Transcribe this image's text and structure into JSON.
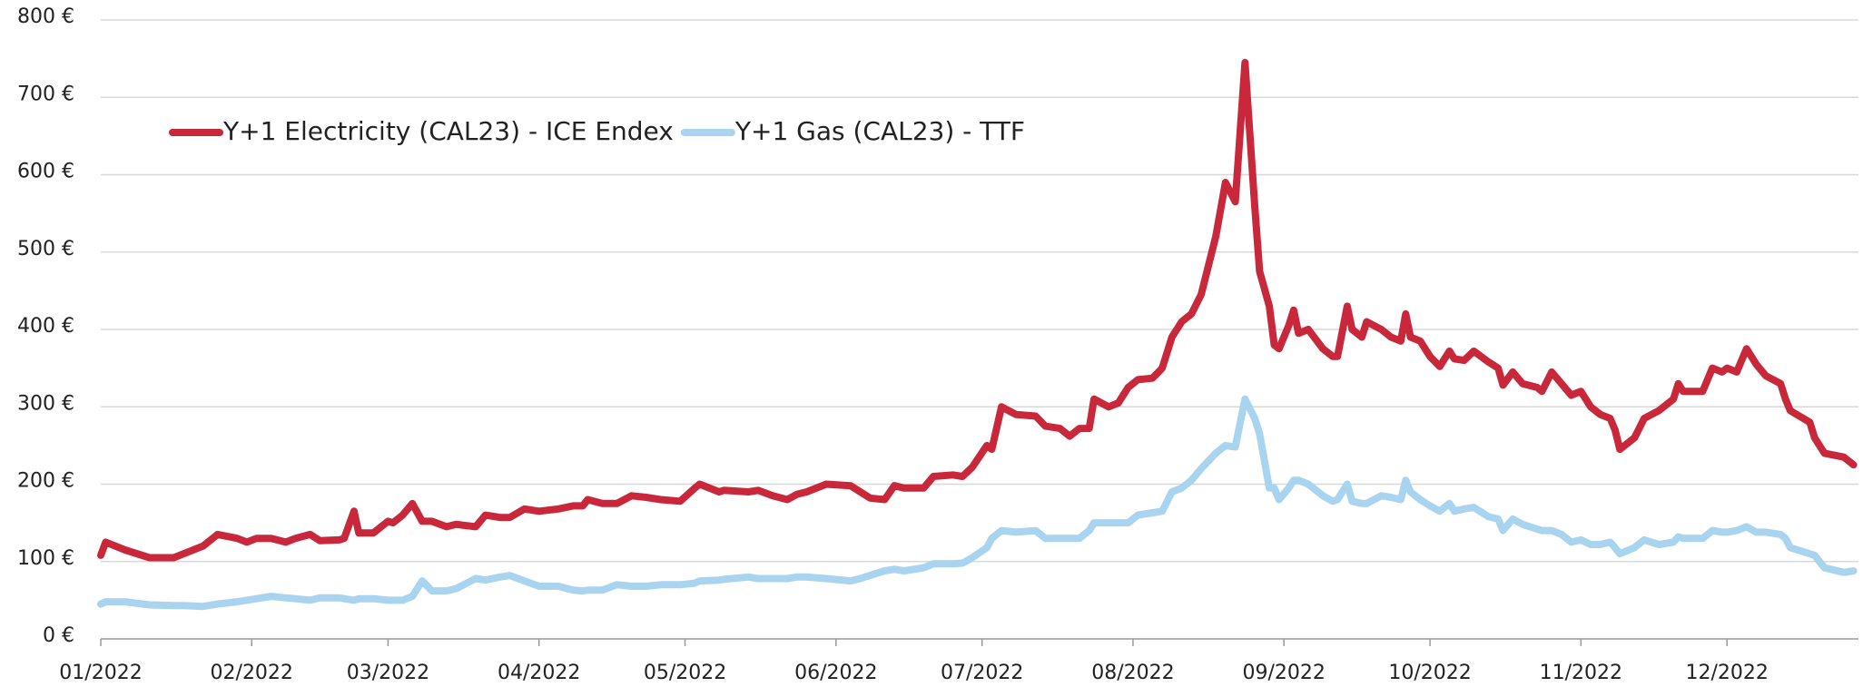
{
  "chart_data": {
    "type": "line",
    "x": [
      0,
      1,
      5,
      10,
      15,
      17,
      21,
      24,
      28,
      30,
      32,
      35,
      38,
      40,
      43,
      45,
      49,
      50,
      52,
      53,
      56,
      59,
      60,
      62,
      64,
      66,
      68,
      71,
      73,
      77,
      79,
      82,
      84,
      87,
      90,
      94,
      97,
      99,
      100,
      103,
      106,
      109,
      112,
      115,
      119,
      122,
      123,
      127,
      128,
      133,
      135,
      138,
      141,
      143,
      145,
      149,
      154,
      156,
      158,
      161,
      163,
      165,
      169,
      171,
      175,
      177,
      179,
      182,
      183,
      185,
      188,
      192,
      194,
      197,
      199,
      201,
      203,
      204,
      207,
      209,
      211,
      213,
      216,
      218,
      220,
      222,
      224,
      226,
      229,
      231,
      233,
      235,
      237,
      238,
      240,
      241,
      242,
      244,
      245,
      246,
      248,
      251,
      253,
      254,
      256,
      257,
      259,
      260,
      263,
      265,
      267,
      268,
      269,
      271,
      273,
      275,
      277,
      278,
      280,
      282,
      285,
      287,
      288,
      290,
      292,
      295,
      296,
      298,
      300,
      302,
      304,
      306,
      308,
      310,
      311,
      312,
      315,
      317,
      320,
      323,
      324,
      325,
      329,
      331,
      333,
      334,
      336,
      338,
      340,
      342,
      345,
      346,
      347,
      351,
      352,
      354,
      358,
      360
    ],
    "series": [
      {
        "name": "Y+1 Electricity (CAL23) - ICE Endex",
        "color": "#c8283a",
        "values": [
          108,
          125,
          115,
          105,
          105,
          110,
          120,
          135,
          130,
          125,
          130,
          130,
          125,
          130,
          135,
          127,
          128,
          130,
          165,
          137,
          137,
          152,
          150,
          160,
          175,
          152,
          152,
          145,
          148,
          145,
          160,
          157,
          157,
          168,
          165,
          168,
          172,
          172,
          180,
          175,
          175,
          185,
          183,
          180,
          178,
          195,
          200,
          190,
          192,
          190,
          192,
          185,
          180,
          187,
          190,
          200,
          198,
          190,
          182,
          180,
          198,
          195,
          195,
          210,
          212,
          210,
          222,
          250,
          245,
          300,
          290,
          288,
          275,
          272,
          262,
          272,
          272,
          310,
          300,
          305,
          325,
          335,
          337,
          350,
          390,
          410,
          420,
          445,
          520,
          590,
          565,
          745,
          560,
          475,
          430,
          380,
          375,
          405,
          425,
          395,
          400,
          375,
          365,
          365,
          430,
          400,
          390,
          410,
          400,
          390,
          385,
          420,
          390,
          385,
          365,
          352,
          372,
          362,
          360,
          372,
          358,
          350,
          328,
          345,
          330,
          325,
          320,
          345,
          330,
          315,
          320,
          300,
          290,
          285,
          270,
          245,
          260,
          285,
          295,
          310,
          330,
          320,
          320,
          350,
          345,
          350,
          345,
          375,
          355,
          340,
          330,
          310,
          295,
          280,
          260,
          240,
          235,
          225
        ]
      },
      {
        "name": "Y+1 Gas (CAL23) - TTF",
        "color": "#a8d4f0",
        "values": [
          45,
          48,
          48,
          44,
          43,
          43,
          42,
          45,
          48,
          50,
          52,
          55,
          53,
          52,
          50,
          53,
          53,
          52,
          50,
          52,
          52,
          50,
          50,
          50,
          55,
          75,
          62,
          62,
          65,
          78,
          76,
          80,
          82,
          75,
          68,
          68,
          63,
          62,
          63,
          63,
          70,
          68,
          68,
          70,
          70,
          72,
          75,
          76,
          77,
          80,
          78,
          78,
          78,
          80,
          80,
          78,
          75,
          78,
          82,
          88,
          90,
          88,
          92,
          97,
          97,
          98,
          105,
          118,
          130,
          140,
          138,
          140,
          130,
          130,
          130,
          130,
          140,
          150,
          150,
          150,
          150,
          160,
          163,
          165,
          190,
          195,
          205,
          220,
          240,
          250,
          248,
          310,
          285,
          265,
          195,
          195,
          180,
          195,
          205,
          205,
          200,
          185,
          178,
          180,
          200,
          178,
          175,
          175,
          185,
          183,
          180,
          205,
          190,
          180,
          172,
          165,
          175,
          165,
          168,
          170,
          158,
          155,
          140,
          155,
          148,
          142,
          140,
          140,
          135,
          125,
          128,
          122,
          122,
          125,
          118,
          110,
          118,
          128,
          122,
          125,
          132,
          130,
          130,
          140,
          138,
          138,
          140,
          145,
          138,
          138,
          135,
          130,
          118,
          110,
          108,
          92,
          86,
          88
        ]
      }
    ],
    "xlim": [
      0,
      361
    ],
    "xticks": [
      {
        "value": 0,
        "label": "01/2022"
      },
      {
        "value": 31,
        "label": "02/2022"
      },
      {
        "value": 59,
        "label": "03/2022"
      },
      {
        "value": 90,
        "label": "04/2022"
      },
      {
        "value": 120,
        "label": "05/2022"
      },
      {
        "value": 151,
        "label": "06/2022"
      },
      {
        "value": 181,
        "label": "07/2022"
      },
      {
        "value": 212,
        "label": "08/2022"
      },
      {
        "value": 243,
        "label": "09/2022"
      },
      {
        "value": 273,
        "label": "10/2022"
      },
      {
        "value": 304,
        "label": "11/2022"
      },
      {
        "value": 334,
        "label": "12/2022"
      }
    ],
    "ylim": [
      0,
      800
    ],
    "yticks": [
      {
        "value": 0,
        "label": "0 €"
      },
      {
        "value": 100,
        "label": "100 €"
      },
      {
        "value": 200,
        "label": "200 €"
      },
      {
        "value": 300,
        "label": "300 €"
      },
      {
        "value": 400,
        "label": "400 €"
      },
      {
        "value": 500,
        "label": "500 €"
      },
      {
        "value": 600,
        "label": "600 €"
      },
      {
        "value": 700,
        "label": "700 €"
      },
      {
        "value": 800,
        "label": "800 €"
      }
    ],
    "grid": true,
    "legend": "upper-left"
  }
}
